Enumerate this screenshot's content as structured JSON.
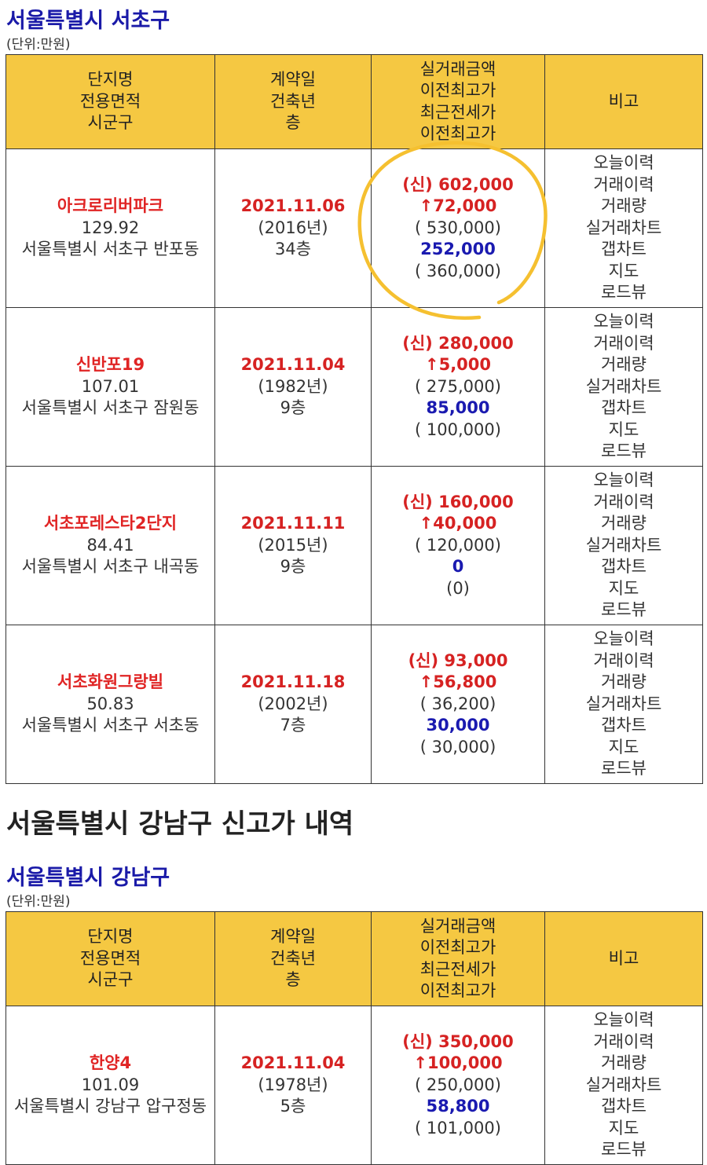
{
  "sections": [
    {
      "heading": "",
      "title": "서울특별시 서초구",
      "unit": "(단위:만원)",
      "rows": [
        {
          "name": "아크로리버파크",
          "area": "129.92",
          "location": "서울특별시 서초구 반포동",
          "date": "2021.11.06",
          "built": "(2016년)",
          "floor": "34층",
          "price": "(신) 602,000",
          "diff": "↑72,000",
          "prev": "( 530,000)",
          "lease": "252,000",
          "lease_prev": "( 360,000)"
        },
        {
          "name": "신반포19",
          "area": "107.01",
          "location": "서울특별시 서초구 잠원동",
          "date": "2021.11.04",
          "built": "(1982년)",
          "floor": "9층",
          "price": "(신) 280,000",
          "diff": "↑5,000",
          "prev": "( 275,000)",
          "lease": "85,000",
          "lease_prev": "( 100,000)"
        },
        {
          "name": "서초포레스타2단지",
          "area": "84.41",
          "location": "서울특별시 서초구 내곡동",
          "date": "2021.11.11",
          "built": "(2015년)",
          "floor": "9층",
          "price": "(신) 160,000",
          "diff": "↑40,000",
          "prev": "( 120,000)",
          "lease": "0",
          "lease_prev": "(0)"
        },
        {
          "name": "서초화원그랑빌",
          "area": "50.83",
          "location": "서울특별시 서초구 서초동",
          "date": "2021.11.18",
          "built": "(2002년)",
          "floor": "7층",
          "price": "(신) 93,000",
          "diff": "↑56,800",
          "prev": "( 36,200)",
          "lease": "30,000",
          "lease_prev": "( 30,000)"
        }
      ]
    },
    {
      "heading": "서울특별시 강남구 신고가 내역",
      "title": "서울특별시 강남구",
      "unit": "(단위:만원)",
      "rows": [
        {
          "name": "한양4",
          "area": "101.09",
          "location": "서울특별시 강남구 압구정동",
          "date": "2021.11.04",
          "built": "(1978년)",
          "floor": "5층",
          "price": "(신) 350,000",
          "diff": "↑100,000",
          "prev": "( 250,000)",
          "lease": "58,800",
          "lease_prev": "( 101,000)"
        }
      ]
    }
  ],
  "header": {
    "col1": [
      "단지명",
      "전용면적",
      "시군구"
    ],
    "col2": [
      "계약일",
      "건축년",
      "층"
    ],
    "col3": [
      "실거래금액",
      "이전최고가",
      "최근전세가",
      "이전최고가"
    ],
    "col4": [
      "비고"
    ]
  },
  "notes": [
    "오늘이력",
    "거래이력",
    "거래량",
    "실거래차트",
    "갭차트",
    "지도",
    "로드뷰"
  ],
  "colors": {
    "title": "#1a1aa8",
    "header_bg": "#f5c842",
    "new_high": "#d62222",
    "lease": "#1a1ab0",
    "annotation": "#f5c030"
  }
}
